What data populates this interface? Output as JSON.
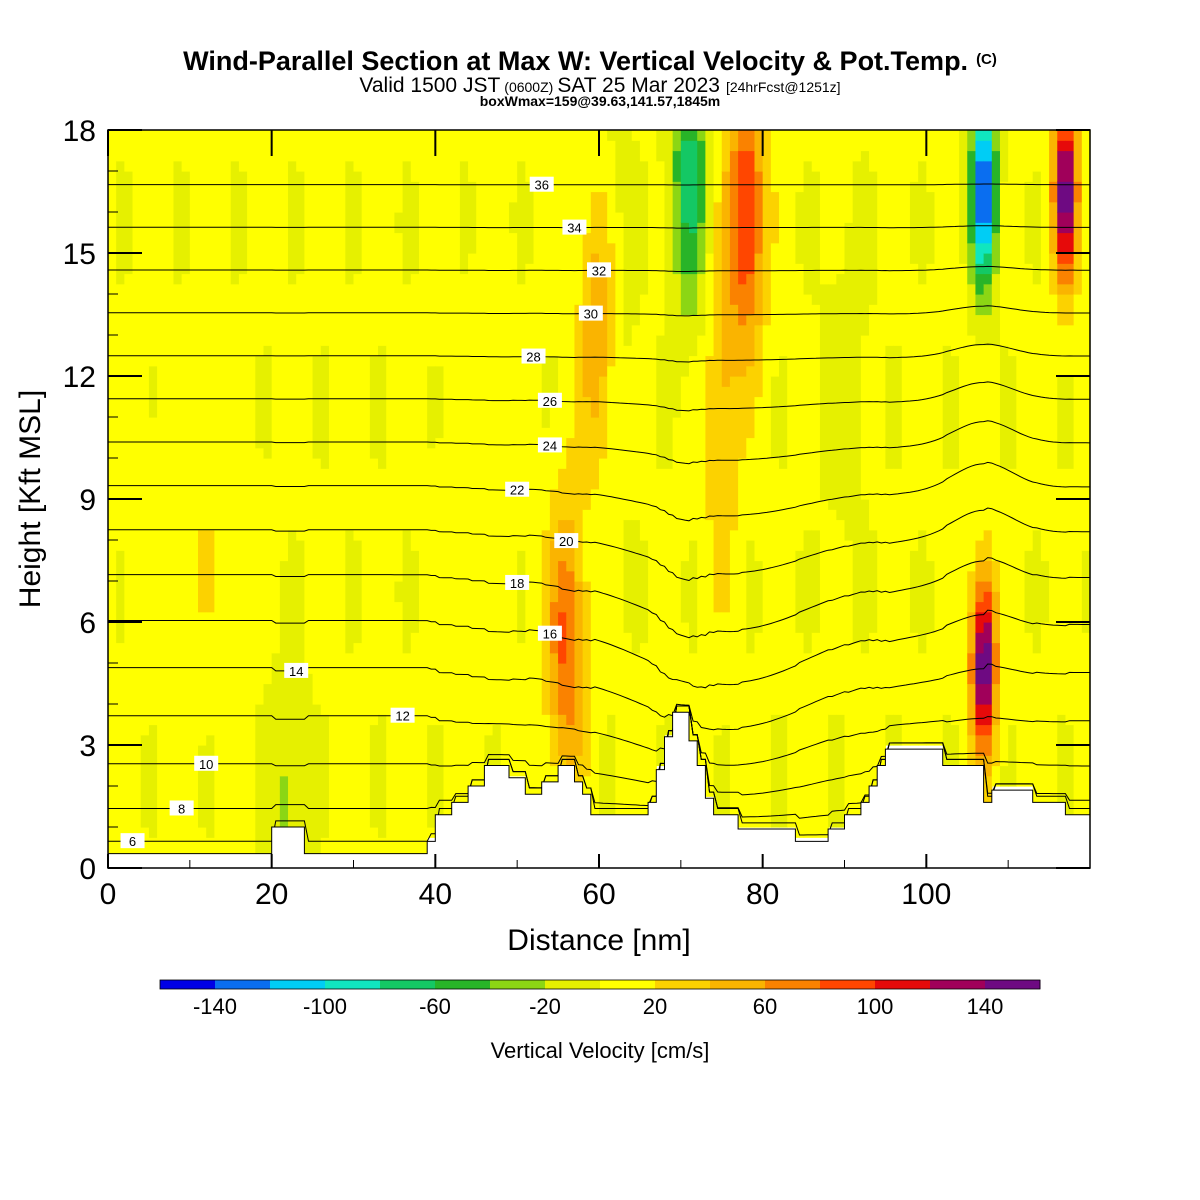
{
  "header": {
    "title": "Wind-Parallel Section at Max W: Vertical Velocity & Pot.Temp.",
    "copyright": "(C)",
    "valid_main": "Valid 1500 JST",
    "valid_utc": "(0600Z)",
    "valid_date": "SAT 25 Mar 2023",
    "forecast": "[24hrFcst@1251z]",
    "boxinfo": "boxWmax=159@39.63,141.57,1845m"
  },
  "chart_data": {
    "type": "heatmap",
    "xlabel": "Distance [nm]",
    "ylabel": "Height [Kft MSL]",
    "xlim": [
      0,
      120
    ],
    "ylim": [
      0,
      18
    ],
    "x_ticks": [
      0,
      20,
      40,
      60,
      80,
      100
    ],
    "y_ticks": [
      0,
      3,
      6,
      9,
      12,
      15,
      18
    ],
    "colorbar": {
      "label": "Vertical Velocity [cm/s]",
      "bounds": [
        -160,
        -140,
        -120,
        -100,
        -80,
        -60,
        -40,
        -20,
        0,
        20,
        40,
        60,
        80,
        100,
        120,
        140,
        160
      ],
      "colors": [
        "#0000e6",
        "#0a6ef0",
        "#00cdf5",
        "#10e6bf",
        "#14c864",
        "#28b428",
        "#8cd614",
        "#e6f000",
        "#ffff00",
        "#fcd200",
        "#fab400",
        "#fa8200",
        "#ff4600",
        "#e60a0a",
        "#a0005a",
        "#6e0a82"
      ],
      "tick_values": [
        -140,
        -100,
        -60,
        -20,
        20,
        60,
        100,
        140
      ],
      "tick_labels": [
        "-140",
        "-100",
        "-60",
        "-20",
        "20",
        "60",
        "100",
        "140"
      ]
    },
    "terrain_kft": [
      [
        0,
        0.35
      ],
      [
        20,
        0.35
      ],
      [
        20,
        1.0
      ],
      [
        24,
        1.0
      ],
      [
        24,
        0.35
      ],
      [
        39,
        0.35
      ],
      [
        39,
        0.65
      ],
      [
        40,
        0.65
      ],
      [
        40,
        1.3
      ],
      [
        42,
        1.3
      ],
      [
        42,
        1.6
      ],
      [
        44,
        1.6
      ],
      [
        44,
        2.0
      ],
      [
        46,
        2.0
      ],
      [
        46,
        2.5
      ],
      [
        49,
        2.5
      ],
      [
        49,
        2.2
      ],
      [
        51,
        2.2
      ],
      [
        51,
        1.8
      ],
      [
        53,
        1.8
      ],
      [
        53,
        2.1
      ],
      [
        55,
        2.1
      ],
      [
        55,
        2.5
      ],
      [
        57,
        2.5
      ],
      [
        57,
        2.1
      ],
      [
        58,
        2.1
      ],
      [
        58,
        1.8
      ],
      [
        59,
        1.8
      ],
      [
        59,
        1.3
      ],
      [
        66,
        1.3
      ],
      [
        66,
        1.6
      ],
      [
        67,
        1.6
      ],
      [
        67,
        2.4
      ],
      [
        68,
        2.4
      ],
      [
        68,
        3.2
      ],
      [
        69,
        3.2
      ],
      [
        69,
        3.8
      ],
      [
        71,
        3.8
      ],
      [
        71,
        3.1
      ],
      [
        72,
        3.1
      ],
      [
        72,
        2.5
      ],
      [
        73,
        2.5
      ],
      [
        73,
        1.7
      ],
      [
        74,
        1.7
      ],
      [
        74,
        1.3
      ],
      [
        77,
        1.3
      ],
      [
        77,
        0.95
      ],
      [
        84,
        0.95
      ],
      [
        84,
        0.65
      ],
      [
        88,
        0.65
      ],
      [
        88,
        0.95
      ],
      [
        90,
        0.95
      ],
      [
        90,
        1.3
      ],
      [
        92,
        1.3
      ],
      [
        92,
        1.6
      ],
      [
        93,
        1.6
      ],
      [
        93,
        2.0
      ],
      [
        94,
        2.0
      ],
      [
        94,
        2.5
      ],
      [
        95,
        2.5
      ],
      [
        95,
        2.9
      ],
      [
        102,
        2.9
      ],
      [
        102,
        2.5
      ],
      [
        107,
        2.5
      ],
      [
        107,
        1.6
      ],
      [
        108,
        1.6
      ],
      [
        108,
        1.9
      ],
      [
        113,
        1.9
      ],
      [
        113,
        1.6
      ],
      [
        117,
        1.6
      ],
      [
        117,
        1.3
      ],
      [
        120,
        1.3
      ]
    ],
    "theta_contours_C": [
      6,
      8,
      10,
      12,
      14,
      16,
      18,
      20,
      22,
      24,
      26,
      28,
      30,
      32,
      34,
      36
    ],
    "w_peaks_cms": [
      {
        "x": 107,
        "z": 5.0,
        "w": 160
      },
      {
        "x": 78,
        "z": 16.0,
        "w": 100
      },
      {
        "x": 117,
        "z": 16.5,
        "w": 150
      },
      {
        "x": 107,
        "z": 16.5,
        "w": -150
      },
      {
        "x": 71,
        "z": 17.0,
        "w": -70
      },
      {
        "x": 56,
        "z": 5.5,
        "w": 80
      },
      {
        "x": 60,
        "z": 13.0,
        "w": 60
      },
      {
        "x": 22,
        "z": 1.6,
        "w": -30
      }
    ]
  }
}
